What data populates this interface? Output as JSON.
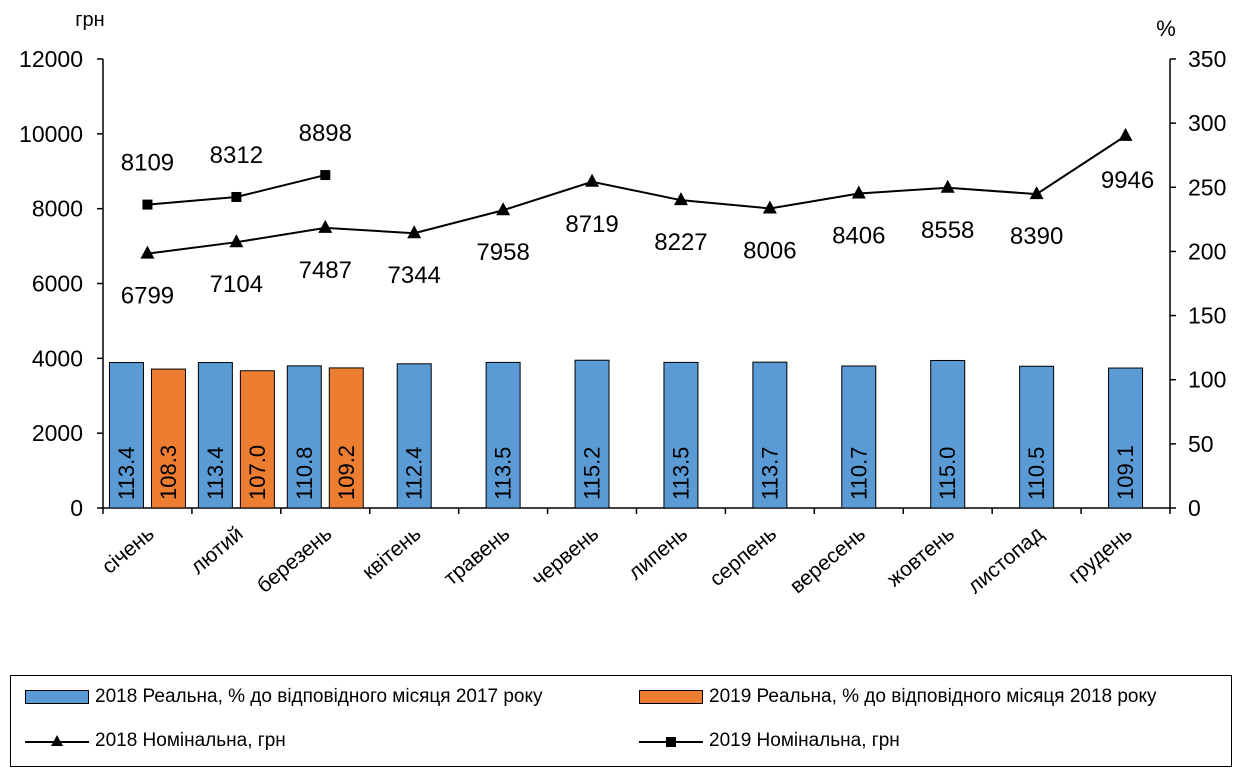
{
  "chart_data": {
    "type": "bar+line",
    "categories": [
      "січень",
      "лютий",
      "березень",
      "квітень",
      "травень",
      "червень",
      "липень",
      "серпень",
      "вересень",
      "жовтень",
      "листопад",
      "грудень"
    ],
    "left_axis": {
      "label": "грн",
      "range": [
        0,
        12000
      ],
      "ticks": [
        "0",
        "2000",
        "4000",
        "6000",
        "8000",
        "10000",
        "12000"
      ]
    },
    "right_axis": {
      "label": "%",
      "range": [
        0,
        350
      ],
      "ticks": [
        "0",
        "50",
        "100",
        "150",
        "200",
        "250",
        "300",
        "350"
      ]
    },
    "bar_series": [
      {
        "name": "2018 Реальна, % до відповідного місяця 2017 року",
        "color": "#5B9BD5",
        "values": [
          113.4,
          113.4,
          110.8,
          112.4,
          113.5,
          115.2,
          113.5,
          113.7,
          110.7,
          115.0,
          110.5,
          109.1
        ],
        "labels": [
          "113.4",
          "113.4",
          "110.8",
          "112.4",
          "113.5",
          "115.2",
          "113.5",
          "113.7",
          "110.7",
          "115.0",
          "110.5",
          "109.1"
        ]
      },
      {
        "name": "2019 Реальна, % до відповідного місяця 2018 року",
        "color": "#ED7D31",
        "values": [
          108.3,
          107.0,
          109.2
        ],
        "labels": [
          "108.3",
          "107.0",
          "109.2"
        ]
      }
    ],
    "line_series": [
      {
        "name": "2018 Номінальна, грн",
        "marker": "triangle",
        "color": "#000000",
        "values": [
          6799,
          7104,
          7487,
          7344,
          7958,
          8719,
          8227,
          8006,
          8406,
          8558,
          8390,
          9946
        ],
        "labels": [
          "6799",
          "7104",
          "7487",
          "7344",
          "7958",
          "8719",
          "8227",
          "8006",
          "8406",
          "8558",
          "8390",
          "9946"
        ]
      },
      {
        "name": "2019 Номінальна, грн",
        "marker": "square",
        "color": "#000000",
        "values": [
          8109,
          8312,
          8898
        ],
        "labels": [
          "8109",
          "8312",
          "8898"
        ]
      }
    ],
    "grid": false,
    "legend_position": "bottom"
  }
}
